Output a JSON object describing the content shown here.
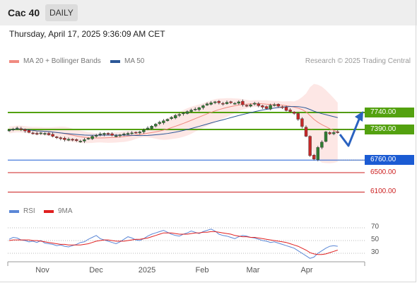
{
  "header": {
    "instrument": "Cac 40",
    "timeframe": "DAILY"
  },
  "datetime": "Thursday, April 17, 2025 9:36:09 AM CET",
  "legend": {
    "ma20": {
      "label": "MA 20 + Bollinger Bands",
      "color": "#f08a80"
    },
    "ma50": {
      "label": "MA 50",
      "color": "#2b5797"
    }
  },
  "credit": "Research © 2025 Trading Central",
  "levels": [
    {
      "value": "7740.00",
      "price": 7740,
      "style": "green"
    },
    {
      "value": "7390.00",
      "price": 7390,
      "style": "green"
    },
    {
      "value": "6760.00",
      "price": 6760,
      "style": "blue"
    },
    {
      "value": "6500.00",
      "price": 6500,
      "style": "red"
    },
    {
      "value": "6100.00",
      "price": 6100,
      "style": "red"
    }
  ],
  "rsi_legend": {
    "rsi": {
      "label": "RSI",
      "color": "#5b87d6"
    },
    "ma": {
      "label": "9MA",
      "color": "#e02020"
    }
  },
  "rsi_ticks": [
    "70",
    "50",
    "30"
  ],
  "months": [
    "Nov",
    "Dec",
    "2025",
    "Feb",
    "Mar",
    "Apr"
  ],
  "colors": {
    "up": "#2f7d32",
    "down": "#c62828",
    "support": "#53a10f",
    "pivot": "#1b5bd3",
    "target": "#cc1f1f",
    "arrow": "#2a62c0"
  },
  "chart_data": {
    "type": "candlestick",
    "ylim": [
      6050,
      7950
    ],
    "closes": [
      7380,
      7400,
      7420,
      7390,
      7360,
      7330,
      7310,
      7300,
      7320,
      7310,
      7280,
      7250,
      7220,
      7200,
      7180,
      7190,
      7170,
      7160,
      7150,
      7180,
      7210,
      7250,
      7270,
      7300,
      7310,
      7290,
      7270,
      7260,
      7280,
      7300,
      7310,
      7320,
      7330,
      7340,
      7380,
      7420,
      7460,
      7500,
      7540,
      7570,
      7600,
      7640,
      7680,
      7700,
      7730,
      7760,
      7790,
      7810,
      7840,
      7880,
      7920,
      7940,
      7960,
      7940,
      7920,
      7950,
      7940,
      7930,
      7960,
      7900,
      7870,
      7900,
      7930,
      7880,
      7850,
      7820,
      7890,
      7900,
      7870,
      7850,
      7780,
      7760,
      7720,
      7600,
      7450,
      7250,
      6850,
      6780,
      7020,
      7130,
      7340,
      7300,
      7330,
      7340
    ],
    "rsi": [
      52,
      55,
      54,
      51,
      50,
      48,
      49,
      47,
      50,
      46,
      45,
      44,
      42,
      43,
      41,
      40,
      42,
      44,
      47,
      48,
      52,
      55,
      58,
      53,
      51,
      49,
      47,
      45,
      48,
      52,
      56,
      54,
      51,
      50,
      53,
      57,
      60,
      62,
      64,
      66,
      63,
      60,
      58,
      57,
      60,
      62,
      65,
      63,
      61,
      64,
      66,
      68,
      65,
      60,
      58,
      57,
      55,
      53,
      56,
      58,
      57,
      55,
      54,
      52,
      50,
      49,
      47,
      48,
      46,
      44,
      42,
      40,
      38,
      34,
      30,
      26,
      22,
      24,
      30,
      34,
      38,
      41,
      42,
      41
    ],
    "rsi_ma": [
      50,
      51,
      51,
      51,
      51,
      51,
      50,
      50,
      49,
      48,
      47,
      46,
      45,
      44,
      44,
      43,
      43,
      43,
      43,
      44,
      45,
      47,
      49,
      50,
      51,
      51,
      50,
      49,
      49,
      49,
      50,
      51,
      52,
      52,
      53,
      54,
      56,
      58,
      60,
      62,
      62,
      62,
      61,
      60,
      60,
      60,
      61,
      62,
      62,
      63,
      63,
      64,
      64,
      63,
      62,
      61,
      60,
      58,
      57,
      56,
      56,
      55,
      55,
      54,
      53,
      52,
      51,
      50,
      49,
      48,
      47,
      45,
      43,
      41,
      38,
      35,
      31,
      29,
      28,
      28,
      29,
      31,
      33,
      35
    ],
    "rsi_ylim": [
      0,
      100
    ]
  }
}
